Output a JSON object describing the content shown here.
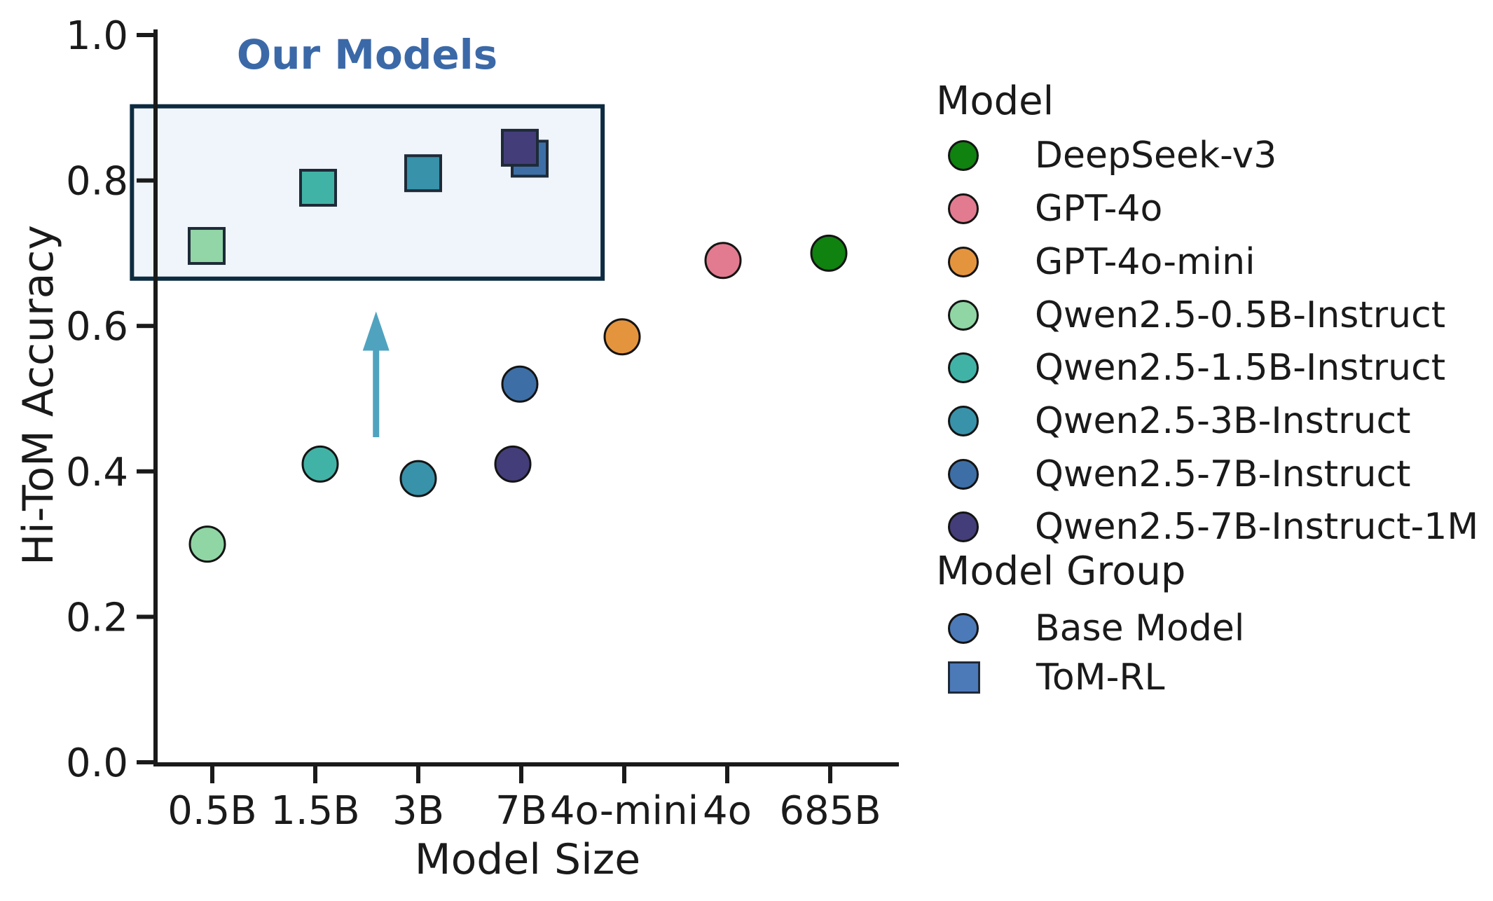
{
  "figure": {
    "annotation_title": "Our Models",
    "xlabel": "Model Size",
    "ylabel": "Hi-ToM Accuracy"
  },
  "colors": {
    "annotation_text": "#3b69a8",
    "box_border": "#0d2b40",
    "box_fill": "#eff5fa",
    "arrow": "#4fa3bf",
    "axis": "#1a1a1a"
  },
  "chart_data": {
    "type": "scatter",
    "title": "",
    "xlabel": "Model Size",
    "ylabel": "Hi-ToM Accuracy",
    "x_categories": [
      "0.5B",
      "1.5B",
      "3B",
      "7B",
      "4o-mini",
      "4o",
      "685B"
    ],
    "yticks": [
      0.0,
      0.2,
      0.4,
      0.6,
      0.8,
      1.0
    ],
    "ylim": [
      0.0,
      1.0
    ],
    "grid": false,
    "legend_position": "right",
    "series": [
      {
        "name": "ToM-RL",
        "marker": "square",
        "edge_color": "#1e2a38",
        "points": [
          {
            "model": "Qwen2.5-7B-Instruct",
            "x": "7B",
            "y": 0.83,
            "color": "#3d6fa6",
            "dx": 12
          },
          {
            "model": "Qwen2.5-0.5B-Instruct",
            "x": "0.5B",
            "y": 0.71,
            "color": "#92d5a6",
            "dx": -8
          },
          {
            "model": "Qwen2.5-1.5B-Instruct",
            "x": "1.5B",
            "y": 0.79,
            "color": "#41b3a6",
            "dx": 4
          },
          {
            "model": "Qwen2.5-3B-Instruct",
            "x": "3B",
            "y": 0.81,
            "color": "#3892a9",
            "dx": 7
          },
          {
            "model": "Qwen2.5-7B-Instruct-1M",
            "x": "7B",
            "y": 0.845,
            "color": "#433e79",
            "dx": -2
          }
        ]
      },
      {
        "name": "Base Model",
        "marker": "circle",
        "edge_color": "#141414",
        "points": [
          {
            "model": "Qwen2.5-0.5B-Instruct",
            "x": "0.5B",
            "y": 0.3,
            "color": "#8fd6a4",
            "dx": -7
          },
          {
            "model": "Qwen2.5-1.5B-Instruct",
            "x": "1.5B",
            "y": 0.41,
            "color": "#41b3a6",
            "dx": 7
          },
          {
            "model": "Qwen2.5-3B-Instruct",
            "x": "3B",
            "y": 0.39,
            "color": "#3892a9",
            "dx": 0
          },
          {
            "model": "Qwen2.5-7B-Instruct",
            "x": "7B",
            "y": 0.52,
            "color": "#3d6fa6",
            "dx": -2
          },
          {
            "model": "Qwen2.5-7B-Instruct-1M",
            "x": "7B",
            "y": 0.41,
            "color": "#433e79",
            "dx": -12
          },
          {
            "model": "GPT-4o-mini",
            "x": "4o-mini",
            "y": 0.585,
            "color": "#e5943e",
            "dx": -3
          },
          {
            "model": "GPT-4o",
            "x": "4o",
            "y": 0.69,
            "color": "#e27b8f",
            "dx": -6
          },
          {
            "model": "DeepSeek-v3",
            "x": "685B",
            "y": 0.7,
            "color": "#0f8210",
            "dx": -2
          }
        ]
      }
    ],
    "annotations": {
      "our_models_label": "Our Models",
      "box": {
        "x0_cat": -0.78,
        "x1_cat": 3.79,
        "y0_acc": 0.902,
        "y1_acc": 0.665,
        "fill": "#eff5fa",
        "border": "#0d2b40"
      },
      "arrow": {
        "x_cat": 1.59,
        "tail_acc": 0.447,
        "tip_acc": 0.62,
        "color": "#4fa3bf"
      }
    }
  },
  "legend": {
    "model_title": "Model",
    "group_title": "Model Group",
    "model_items": [
      {
        "label": "DeepSeek-v3",
        "color": "#0f8210"
      },
      {
        "label": "GPT-4o",
        "color": "#e27b8f"
      },
      {
        "label": "GPT-4o-mini",
        "color": "#e5943e"
      },
      {
        "label": "Qwen2.5-0.5B-Instruct",
        "color": "#8fd6a4"
      },
      {
        "label": "Qwen2.5-1.5B-Instruct",
        "color": "#41b3a6"
      },
      {
        "label": "Qwen2.5-3B-Instruct",
        "color": "#3892a9"
      },
      {
        "label": "Qwen2.5-7B-Instruct",
        "color": "#3d6fa6"
      },
      {
        "label": "Qwen2.5-7B-Instruct-1M",
        "color": "#433e79"
      }
    ],
    "group_items": [
      {
        "label": "Base Model",
        "color": "#4c7ab8",
        "marker": "circle"
      },
      {
        "label": "ToM-RL",
        "color": "#4c7ab8",
        "marker": "square"
      }
    ]
  }
}
